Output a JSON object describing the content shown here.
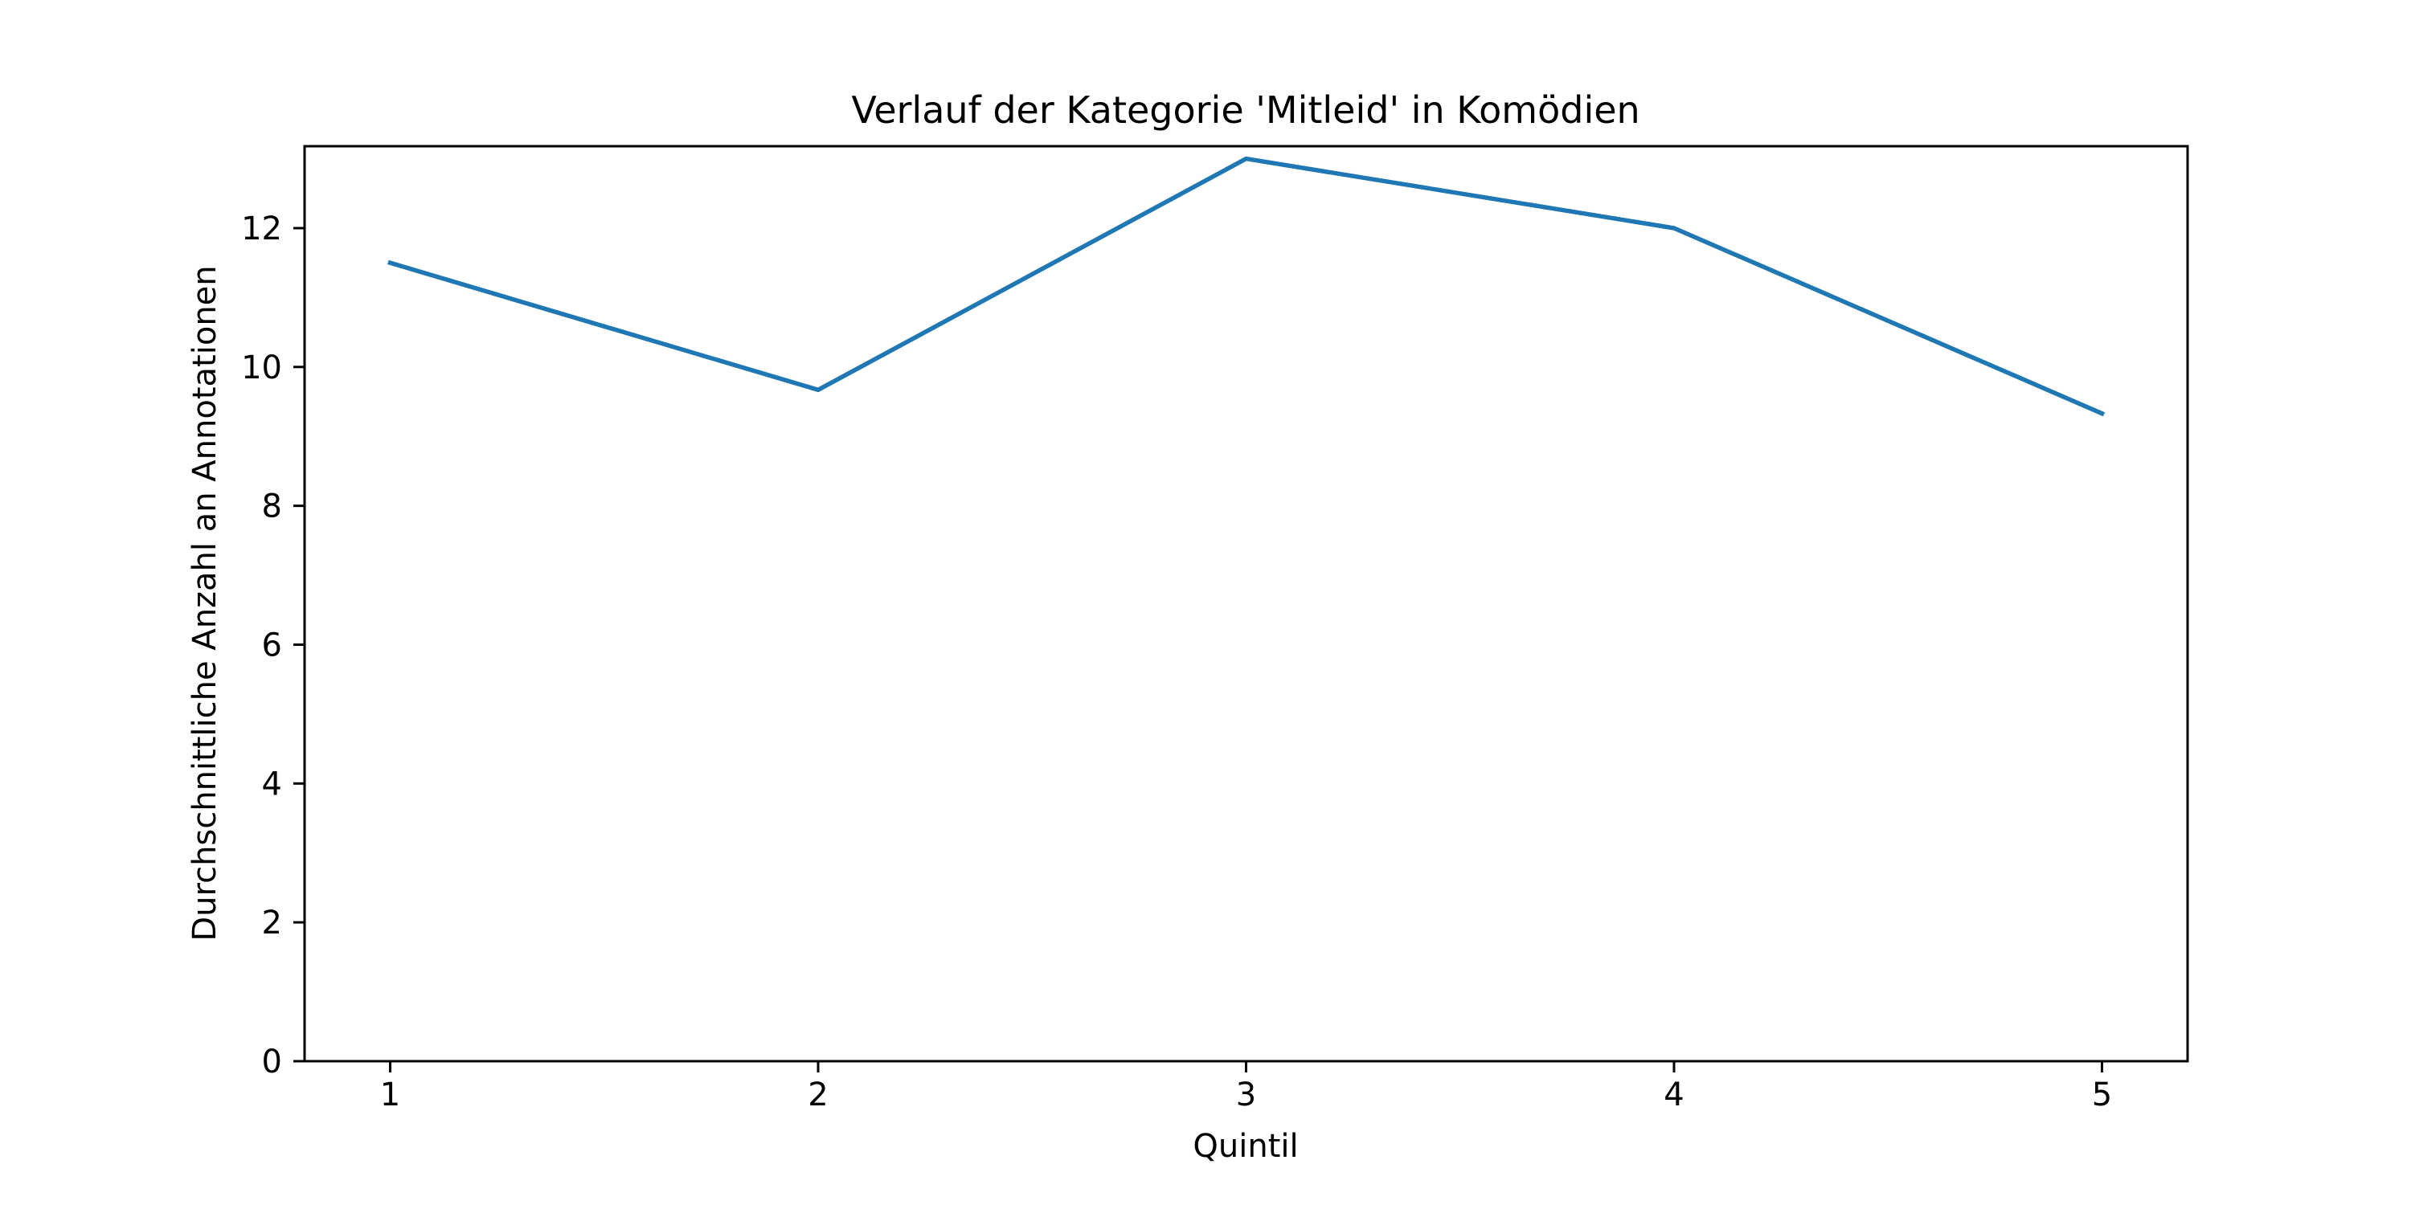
{
  "chart_data": {
    "type": "line",
    "title": "Verlauf der Kategorie 'Mitleid' in Komödien",
    "xlabel": "Quintil",
    "ylabel": "Durchschnittliche Anzahl an Annotationen",
    "x": [
      1,
      2,
      3,
      4,
      5
    ],
    "series": [
      {
        "values": [
          11.5,
          9.67,
          13.0,
          12.0,
          9.33
        ],
        "color": "#1f77b4"
      }
    ],
    "xlim": [
      0.8,
      5.2
    ],
    "ylim": [
      0,
      13.18
    ],
    "xticks": [
      1,
      2,
      3,
      4,
      5
    ],
    "yticks": [
      0,
      2,
      4,
      6,
      8,
      10,
      12
    ],
    "grid": false,
    "legend": "none"
  }
}
